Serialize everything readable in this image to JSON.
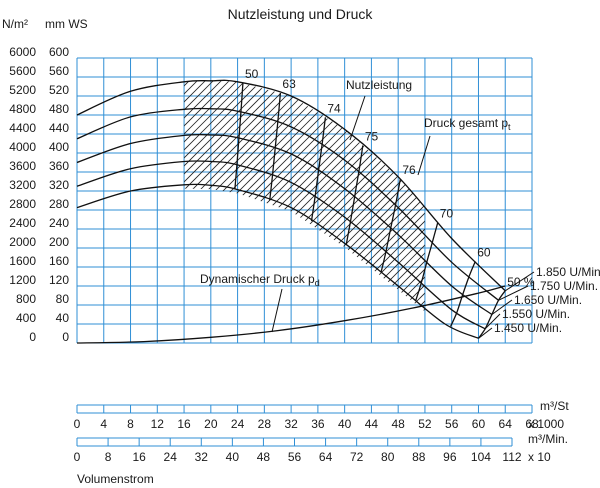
{
  "chart_data": {
    "type": "line",
    "title": "Nutzleistung und Druck",
    "ylabel_left": "N/m²",
    "ylabel_right": "mm WS",
    "xlabel": "Volumenstrom",
    "y_pa_ticks": [
      "6000",
      "5600",
      "5200",
      "4800",
      "4400",
      "4000",
      "3600",
      "3200",
      "2800",
      "2400",
      "2000",
      "1600",
      "1200",
      "800",
      "400",
      "0"
    ],
    "y_mmws_ticks": [
      "600",
      "560",
      "520",
      "480",
      "440",
      "400",
      "360",
      "320",
      "280",
      "240",
      "200",
      "160",
      "120",
      "80",
      "40",
      "0"
    ],
    "ylim": [
      0,
      600
    ],
    "flow_m3h_unit": "m³/St",
    "flow_m3h_ticks": [
      "0",
      "4",
      "8",
      "12",
      "16",
      "20",
      "24",
      "28",
      "32",
      "36",
      "40",
      "44",
      "48",
      "52",
      "56",
      "60",
      "64",
      "68"
    ],
    "flow_m3h_factor": "x 1000",
    "flow_m3min_unit": "m³/Min.",
    "flow_m3min_ticks": [
      "0",
      "8",
      "16",
      "24",
      "32",
      "40",
      "48",
      "56",
      "64",
      "72",
      "80",
      "88",
      "96",
      "104",
      "112"
    ],
    "flow_m3min_factor": "x 10",
    "xlim_m3h_thousand": [
      0,
      68
    ],
    "series": [
      {
        "name": "1.850 U/Min",
        "x": [
          0,
          8,
          16,
          20,
          24,
          32,
          40,
          48,
          56,
          64
        ],
        "y": [
          480,
          530,
          550,
          552,
          550,
          520,
          450,
          350,
          220,
          110
        ]
      },
      {
        "name": "1.750 U/Min.",
        "x": [
          0,
          8,
          16,
          20,
          24,
          32,
          40,
          48,
          56,
          63
        ],
        "y": [
          430,
          476,
          492,
          493,
          488,
          455,
          385,
          285,
          170,
          90
        ]
      },
      {
        "name": "1.650 U/Min.",
        "x": [
          0,
          8,
          16,
          20,
          24,
          32,
          40,
          48,
          56,
          62
        ],
        "y": [
          380,
          420,
          437,
          438,
          432,
          398,
          325,
          228,
          120,
          60
        ]
      },
      {
        "name": "1.550 U/Min.",
        "x": [
          0,
          8,
          16,
          20,
          24,
          32,
          40,
          48,
          56,
          61
        ],
        "y": [
          330,
          367,
          382,
          382,
          375,
          338,
          265,
          170,
          70,
          30
        ]
      },
      {
        "name": "1.450 U/Min.",
        "x": [
          0,
          8,
          16,
          20,
          24,
          32,
          40,
          48,
          55,
          60
        ],
        "y": [
          285,
          320,
          333,
          332,
          323,
          285,
          210,
          120,
          40,
          10
        ]
      }
    ],
    "dynamic_pressure": {
      "name": "Dynamischer Druck p",
      "subscript": "d",
      "x": [
        0,
        10,
        20,
        30,
        40,
        50,
        60,
        64
      ],
      "y": [
        0,
        3,
        12,
        26,
        47,
        73,
        105,
        120
      ]
    },
    "efficiency_labels": [
      "50",
      "63",
      "74",
      "75",
      "76",
      "70",
      "60",
      "50 %"
    ],
    "annotations": {
      "power": "Nutzleistung",
      "total_pressure": "Druck gesamt p",
      "total_pressure_sub": "t"
    }
  }
}
